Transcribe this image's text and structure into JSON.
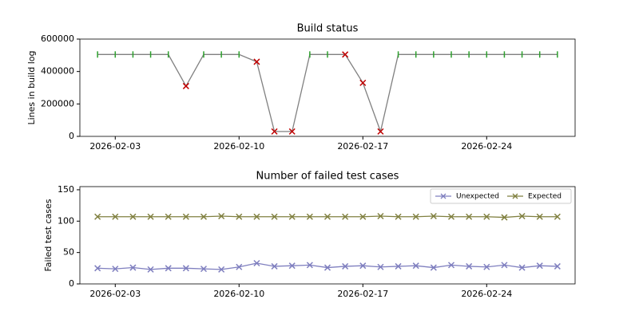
{
  "chart_data": [
    {
      "type": "line",
      "title": "Build status",
      "ylabel": "Lines in build log",
      "xlim": [
        "2026-02-01",
        "2026-03-01"
      ],
      "xticks": [
        "2026-02-03",
        "2026-02-10",
        "2026-02-17",
        "2026-02-24"
      ],
      "ylim": [
        0,
        600000
      ],
      "yticks": [
        0,
        200000,
        400000,
        600000
      ],
      "x": [
        "2026-02-02",
        "2026-02-03",
        "2026-02-04",
        "2026-02-05",
        "2026-02-06",
        "2026-02-07",
        "2026-02-08",
        "2026-02-09",
        "2026-02-10",
        "2026-02-11",
        "2026-02-12",
        "2026-02-13",
        "2026-02-14",
        "2026-02-15",
        "2026-02-16",
        "2026-02-17",
        "2026-02-18",
        "2026-02-19",
        "2026-02-20",
        "2026-02-21",
        "2026-02-22",
        "2026-02-23",
        "2026-02-24",
        "2026-02-25",
        "2026-02-26",
        "2026-02-27",
        "2026-02-28"
      ],
      "series": [
        {
          "color": "#808080",
          "values": [
            505000,
            505000,
            505000,
            505000,
            505000,
            310000,
            505000,
            505000,
            505000,
            460000,
            30000,
            30000,
            505000,
            505000,
            505000,
            330000,
            30000,
            505000,
            505000,
            505000,
            505000,
            505000,
            505000,
            505000,
            505000,
            505000,
            505000
          ],
          "markers": [
            "|",
            "|",
            "|",
            "|",
            "|",
            "x",
            "|",
            "|",
            "|",
            "x",
            "x",
            "x",
            "|",
            "|",
            "x",
            "x",
            "x",
            "|",
            "|",
            "|",
            "|",
            "|",
            "|",
            "|",
            "|",
            "|",
            "|"
          ],
          "marker_colors": [
            "#2ca02c",
            "#2ca02c",
            "#2ca02c",
            "#2ca02c",
            "#2ca02c",
            "#c00000",
            "#2ca02c",
            "#2ca02c",
            "#2ca02c",
            "#c00000",
            "#c00000",
            "#c00000",
            "#2ca02c",
            "#2ca02c",
            "#c00000",
            "#c00000",
            "#c00000",
            "#2ca02c",
            "#2ca02c",
            "#2ca02c",
            "#2ca02c",
            "#2ca02c",
            "#2ca02c",
            "#2ca02c",
            "#2ca02c",
            "#2ca02c",
            "#2ca02c"
          ]
        }
      ]
    },
    {
      "type": "line",
      "title": "Number of failed test cases",
      "ylabel": "Failed test cases",
      "xlim": [
        "2026-02-01",
        "2026-03-01"
      ],
      "xticks": [
        "2026-02-03",
        "2026-02-10",
        "2026-02-17",
        "2026-02-24"
      ],
      "ylim": [
        0,
        155
      ],
      "yticks": [
        0,
        50,
        100,
        150
      ],
      "legend": "upper right",
      "x": [
        "2026-02-02",
        "2026-02-03",
        "2026-02-04",
        "2026-02-05",
        "2026-02-06",
        "2026-02-07",
        "2026-02-08",
        "2026-02-09",
        "2026-02-10",
        "2026-02-11",
        "2026-02-12",
        "2026-02-13",
        "2026-02-14",
        "2026-02-15",
        "2026-02-16",
        "2026-02-17",
        "2026-02-18",
        "2026-02-19",
        "2026-02-20",
        "2026-02-21",
        "2026-02-22",
        "2026-02-23",
        "2026-02-24",
        "2026-02-25",
        "2026-02-26",
        "2026-02-27",
        "2026-02-28"
      ],
      "series": [
        {
          "name": "Unexpected",
          "color": "#7f7fbf",
          "marker": "x",
          "values": [
            25,
            24,
            26,
            23,
            25,
            25,
            24,
            23,
            27,
            33,
            28,
            29,
            30,
            26,
            28,
            29,
            27,
            28,
            29,
            26,
            30,
            28,
            27,
            30,
            26,
            29,
            28
          ]
        },
        {
          "name": "Expected",
          "color": "#808040",
          "marker": "x",
          "values": [
            107,
            107,
            107,
            107,
            107,
            107,
            107,
            108,
            107,
            107,
            107,
            107,
            107,
            107,
            107,
            107,
            108,
            107,
            107,
            108,
            107,
            107,
            107,
            106,
            108,
            107,
            107
          ]
        }
      ]
    }
  ]
}
